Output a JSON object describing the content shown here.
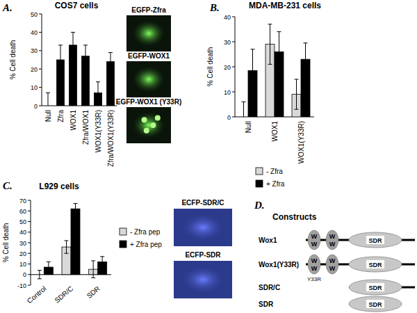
{
  "panel_labels": [
    "A.",
    "B.",
    "C.",
    "D."
  ],
  "chart_data": [
    {
      "type": "bar",
      "title": "COS7 cells",
      "ylabel": "% Cell death",
      "categories": [
        "Null",
        "Zfra",
        "WOX1",
        "Zfra/WOX1",
        "WOX1(Y33R)",
        "Zfra/WOX1(Y33R)"
      ],
      "values": [
        0,
        25,
        33,
        27,
        7,
        24
      ],
      "errors": [
        7,
        8,
        7,
        6,
        6,
        5
      ],
      "color": "#000000",
      "ylim": [
        0,
        50
      ],
      "yticks": [
        0,
        10,
        20,
        30,
        40,
        50
      ]
    },
    {
      "type": "bar",
      "title": "MDA-MB-231 cells",
      "ylabel": "% Cell death",
      "categories": [
        "Null",
        "WOX1",
        "WOX1(Y33R)"
      ],
      "series": [
        {
          "name": "- Zfra",
          "color": "#d9d9d9",
          "values": [
            0,
            29,
            9
          ],
          "errors": [
            6,
            8,
            6
          ]
        },
        {
          "name": "+ Zfra",
          "color": "#000000",
          "values": [
            18.5,
            26,
            23
          ],
          "errors": [
            8.5,
            8,
            6.5
          ]
        }
      ],
      "ylim": [
        0,
        40
      ],
      "yticks": [
        0,
        10,
        20,
        30,
        40
      ],
      "legend": "bottom"
    },
    {
      "type": "bar",
      "title": "L929 cells",
      "ylabel": "% Cell death",
      "categories": [
        "Control",
        "SDR/C",
        "SDR"
      ],
      "series": [
        {
          "name": "- Zfra pep",
          "color": "#d9d9d9",
          "values": [
            0,
            26,
            5
          ],
          "errors": [
            4,
            6,
            8
          ]
        },
        {
          "name": "+ Zfra pep",
          "color": "#000000",
          "values": [
            7,
            62,
            12
          ],
          "errors": [
            5,
            5,
            5
          ]
        }
      ],
      "ylim": [
        -10,
        70
      ],
      "yticks": [
        -10,
        0,
        10,
        20,
        30,
        40,
        50,
        60,
        70
      ],
      "legend": "right"
    }
  ],
  "micrographs": [
    [
      "EGFP-Zfra",
      "EGFP-WOX1",
      "EGFP-WOX1 (Y33R)"
    ],
    [
      "ECFP-SDR/C",
      "ECFP-SDR"
    ]
  ],
  "constructs": {
    "title": "Constructs",
    "items": [
      {
        "name": "Wox1",
        "ww": [
          [
            "W",
            "W"
          ],
          [
            "W",
            "W"
          ]
        ],
        "domain": "SDR",
        "n_terminal": true,
        "c_tail": true
      },
      {
        "name": "Wox1(Y33R)",
        "ww": [
          [
            "W",
            "W"
          ],
          [
            "W",
            "W"
          ]
        ],
        "domain": "SDR",
        "mutation": "Y33R",
        "n_terminal": true,
        "c_tail": true
      },
      {
        "name": "SDR/C",
        "ww": [],
        "domain": "SDR",
        "n_terminal": false,
        "c_tail": true
      },
      {
        "name": "SDR",
        "ww": [],
        "domain": "SDR",
        "n_terminal": false,
        "c_tail": false
      }
    ]
  }
}
